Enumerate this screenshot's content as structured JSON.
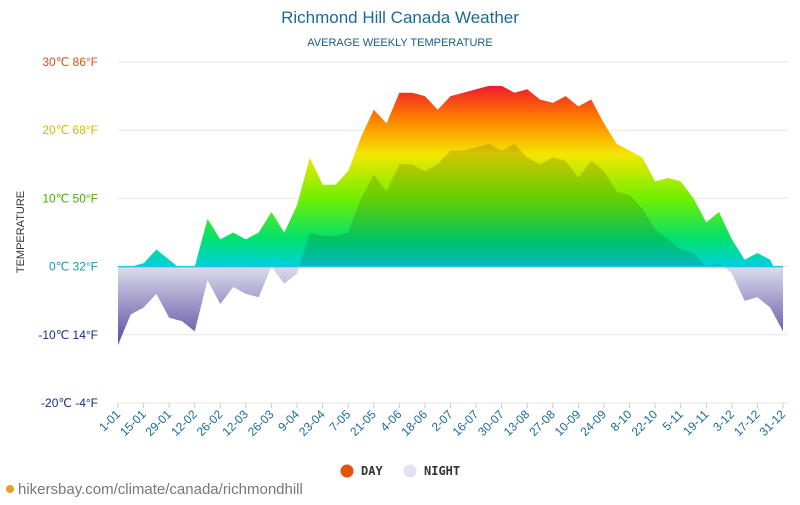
{
  "chart_data": {
    "type": "area",
    "title": "Richmond Hill Canada Weather",
    "subtitle": "AVERAGE WEEKLY TEMPERATURE",
    "y_label": "TEMPERATURE",
    "source": "hikersbay.com/climate/canada/richmondhill",
    "categories": [
      "1-01",
      null,
      "15-01",
      null,
      "29-01",
      null,
      "12-02",
      null,
      "26-02",
      null,
      "12-03",
      null,
      "26-03",
      null,
      "9-04",
      null,
      "23-04",
      null,
      "7-05",
      null,
      "21-05",
      null,
      "4-06",
      null,
      "18-06",
      null,
      "2-07",
      null,
      "16-07",
      null,
      "30-07",
      null,
      "13-08",
      null,
      "27-08",
      null,
      "10-09",
      null,
      "24-09",
      null,
      "8-10",
      null,
      "22-10",
      null,
      "5-11",
      null,
      "19-11",
      null,
      "3-12",
      null,
      "17-12",
      null,
      "31-12"
    ],
    "series": [
      {
        "name": "DAY",
        "color": "#e8510a",
        "values": [
          -3,
          0,
          0.5,
          2.5,
          1,
          -0.5,
          0,
          7,
          4,
          5,
          4,
          5,
          8,
          5,
          9,
          16,
          12,
          12,
          14,
          19,
          23,
          21,
          25.5,
          25.5,
          25,
          23,
          25,
          25.5,
          26,
          26.5,
          26.5,
          25.5,
          26,
          24.5,
          24,
          25,
          23.5,
          24.5,
          21,
          18,
          17,
          16,
          12.5,
          13,
          12.5,
          10,
          6.5,
          8,
          4,
          1,
          2,
          1,
          -3
        ]
      },
      {
        "name": "NIGHT",
        "color": "#e2e2ee",
        "values": [
          -11.5,
          -7,
          -6,
          -4,
          -7.5,
          -8,
          -9.5,
          -2,
          -5.5,
          -3,
          -4,
          -4.5,
          0,
          -2.5,
          -1,
          5,
          4.5,
          4.5,
          5,
          10,
          13.5,
          11,
          15,
          15,
          14,
          15,
          17,
          17,
          17.5,
          18,
          17,
          18,
          16,
          15,
          16,
          15.5,
          13,
          15.5,
          14,
          11,
          10.5,
          8.5,
          5.5,
          4,
          2.5,
          2,
          0,
          0.5,
          -1,
          -5,
          -4.5,
          -6,
          -9.5
        ]
      }
    ],
    "ylim": [
      -20,
      30
    ],
    "yticks": [
      {
        "value": -20,
        "label": "-20℃ -4°F"
      },
      {
        "value": -10,
        "label": "-10℃ 14°F"
      },
      {
        "value": 0,
        "label": "0℃ 32°F"
      },
      {
        "value": 10,
        "label": "10℃ 50°F"
      },
      {
        "value": 20,
        "label": "20℃ 68°F"
      },
      {
        "value": 30,
        "label": "30℃ 86°F"
      }
    ],
    "grid": true
  }
}
